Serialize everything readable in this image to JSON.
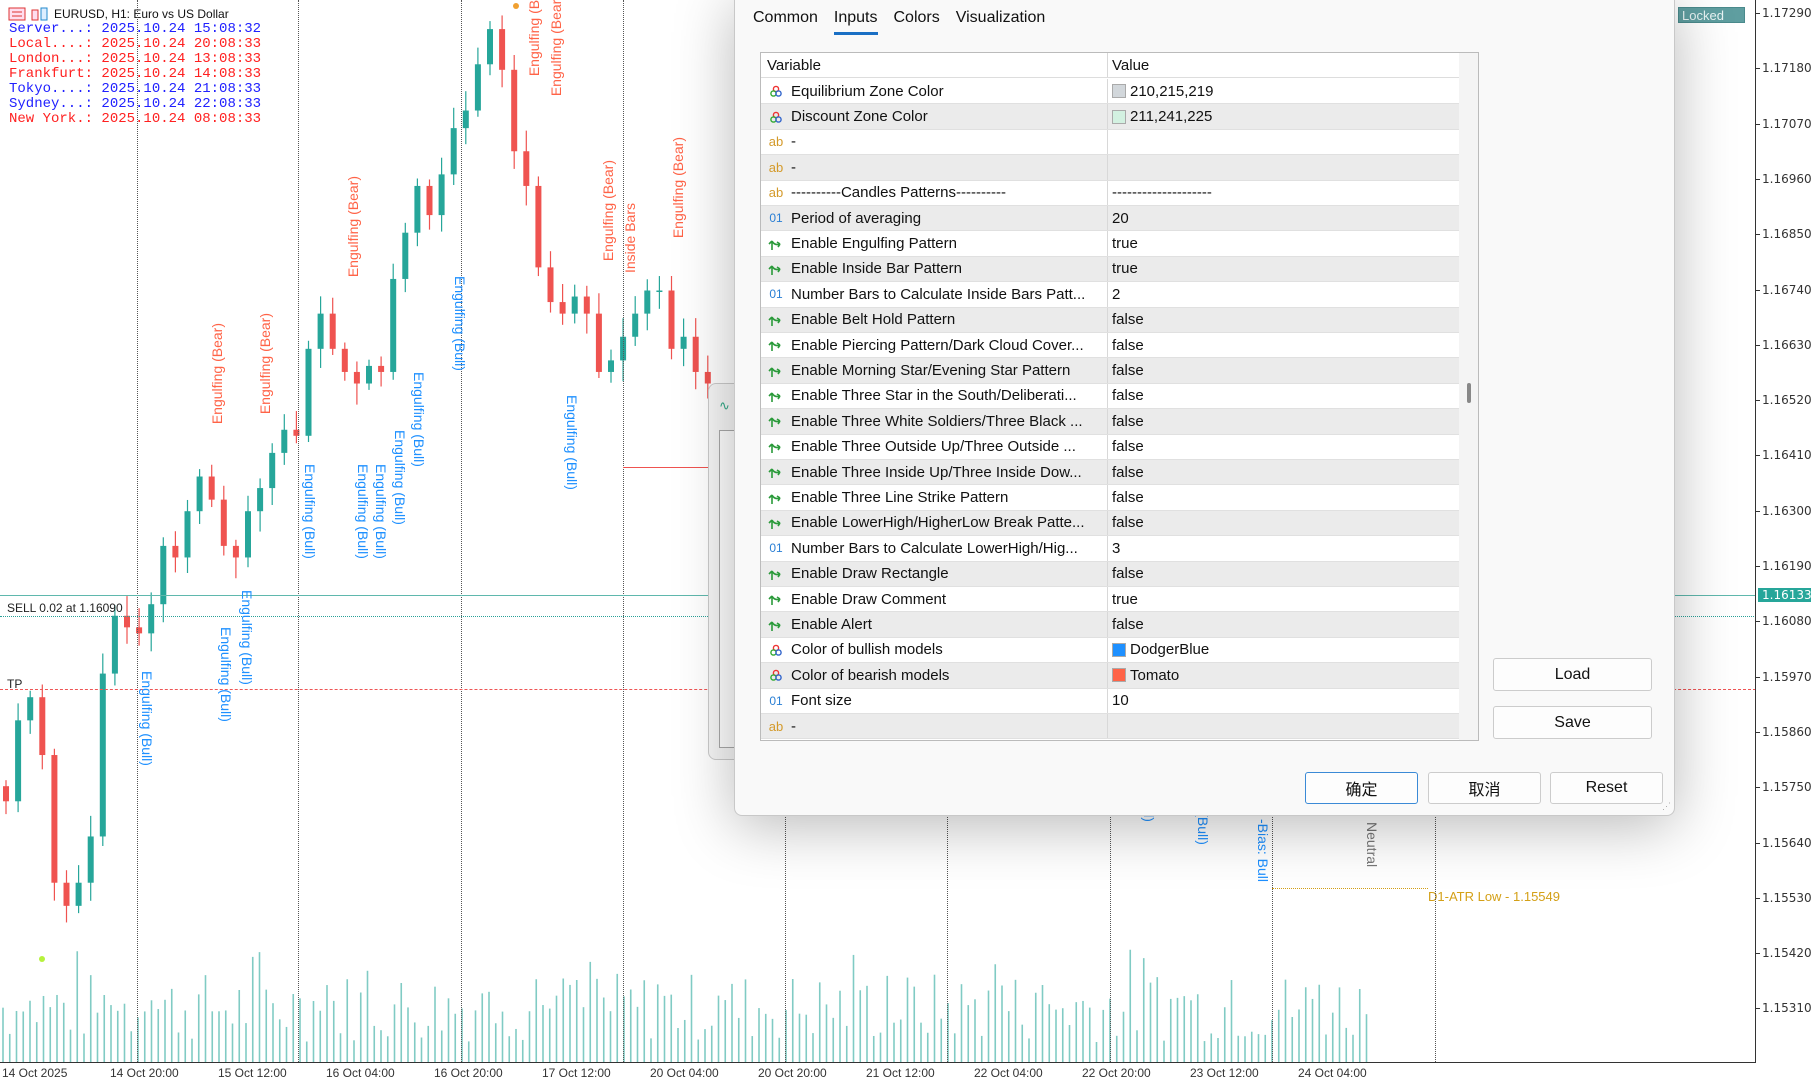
{
  "header": {
    "symbol_title": "EURUSD, H1:  Euro vs US Dollar"
  },
  "clocks": [
    {
      "label": "Server...:",
      "value": "2025.10.24 15:08:32",
      "color": "#2020ff"
    },
    {
      "label": "Local....:",
      "value": "2025.10.24 20:08:33",
      "color": "#ff2020"
    },
    {
      "label": "London...:",
      "value": "2025.10.24 13:08:33",
      "color": "#ff2020"
    },
    {
      "label": "Frankfurt:",
      "value": "2025.10.24 14:08:33",
      "color": "#ff2020"
    },
    {
      "label": "Tokyo....:",
      "value": "2025.10.24 21:08:33",
      "color": "#2020ff"
    },
    {
      "label": "Sydney...:",
      "value": "2025.10.24 22:08:33",
      "color": "#2020ff"
    },
    {
      "label": "New York.:",
      "value": "2025.10.24 08:08:33",
      "color": "#ff2020"
    }
  ],
  "chart_data": {
    "type": "candlestick",
    "symbol": "EURUSD",
    "timeframe": "H1",
    "ylim": [
      1.1525,
      1.1731
    ],
    "y_ticks": [
      "1.17290",
      "1.17180",
      "1.17070",
      "1.16960",
      "1.16850",
      "1.16740",
      "1.16630",
      "1.16520",
      "1.16410",
      "1.16300",
      "1.16190",
      "1.16080",
      "1.15970",
      "1.15860",
      "1.15750",
      "1.15640",
      "1.15530",
      "1.15420",
      "1.15310"
    ],
    "x_ticks": [
      "14 Oct 2025",
      "14 Oct 20:00",
      "15 Oct 12:00",
      "16 Oct 04:00",
      "16 Oct 20:00",
      "17 Oct 12:00",
      "20 Oct 04:00",
      "20 Oct 20:00",
      "21 Oct 12:00",
      "22 Oct 04:00",
      "22 Oct 20:00",
      "23 Oct 12:00",
      "24 Oct 04:00"
    ],
    "closes": [
      1.15722,
      1.15883,
      1.15929,
      1.15814,
      1.1556,
      1.15514,
      1.1556,
      1.15652,
      1.15976,
      1.16091,
      1.16068,
      1.16056,
      1.16114,
      1.1623,
      1.16207,
      1.16299,
      1.16368,
      1.16322,
      1.1623,
      1.16207,
      1.16299,
      1.16345,
      1.16415,
      1.16461,
      1.16449,
      1.16622,
      1.16692,
      1.16622,
      1.16576,
      1.16553,
      1.16588,
      1.16576,
      1.16761,
      1.16853,
      1.16946,
      1.16888,
      1.16969,
      1.17061,
      1.17096,
      1.17188,
      1.17258,
      1.17177,
      1.17015,
      1.16946,
      1.16784,
      1.16715,
      1.16692,
      1.16726,
      1.16692,
      1.16576,
      1.16599,
      1.16646,
      1.16692,
      1.16738,
      1.16738,
      1.16622,
      1.16646,
      1.16576,
      1.16553
    ],
    "current_price": "1.16133",
    "bull_color": "#26a69a",
    "bear_color": "#ef5350",
    "volume_color": "#80cbc4",
    "order_line": {
      "label": "SELL 0.02 at 1.16090",
      "price": 1.1609
    },
    "tp_line": {
      "label": "TP",
      "price": 1.15945
    },
    "atr_line": {
      "label": "D1-ATR Low - 1.15549",
      "price": 1.15549
    },
    "annotations": [
      {
        "text": "Engulfing (Bear)",
        "kind": "bear"
      },
      {
        "text": "Engulfing (Bear)",
        "kind": "bear"
      },
      {
        "text": "Engulfing (Bear)",
        "kind": "bear"
      },
      {
        "text": "Engulfing (Bear)",
        "kind": "bear"
      },
      {
        "text": "Engulfing (Bear)",
        "kind": "bear"
      },
      {
        "text": "Engulfing (Bear)",
        "kind": "bear"
      },
      {
        "text": "Inside Bars",
        "kind": "bear"
      },
      {
        "text": "Engulfing (Bear)",
        "kind": "bear"
      },
      {
        "text": "Engulfing (Bull)",
        "kind": "bull"
      },
      {
        "text": "Engulfing (Bull)",
        "kind": "bull"
      },
      {
        "text": "Engulfing (Bull)",
        "kind": "bull"
      },
      {
        "text": "Engulfing (Bull)",
        "kind": "bull"
      },
      {
        "text": "Engulfing (Bull)",
        "kind": "bull"
      },
      {
        "text": "Engulfing (Bull)",
        "kind": "bull"
      },
      {
        "text": "Engulfing (Bull)",
        "kind": "bull"
      },
      {
        "text": "Engulfing (Bull)",
        "kind": "bull"
      },
      {
        "text": "Engulfing (Bull)",
        "kind": "bull"
      },
      {
        "text": "Engulfing (Bull)",
        "kind": "bull"
      },
      {
        "text": "Engulfing (Bull)",
        "kind": "bull"
      },
      {
        "text": "Engulfing (Bull)",
        "kind": "bull"
      },
      {
        "text": "-Bias: Bull",
        "kind": "bull"
      },
      {
        "text": "Neutral",
        "kind": "neutral"
      }
    ]
  },
  "locked_badge": "Locked",
  "dialog": {
    "tabs": [
      {
        "label": "Common"
      },
      {
        "label": "Inputs",
        "active": true
      },
      {
        "label": "Colors"
      },
      {
        "label": "Visualization"
      }
    ],
    "columns": {
      "variable": "Variable",
      "value": "Value"
    },
    "rows": [
      {
        "type": "color",
        "name": "Equilibrium Zone Color",
        "value": "210,215,219",
        "swatch": "#d2d7db"
      },
      {
        "type": "color",
        "name": "Discount Zone Color",
        "value": "211,241,225",
        "swatch": "#d3f1e1"
      },
      {
        "type": "string",
        "name": "-",
        "value": ""
      },
      {
        "type": "string",
        "name": "-",
        "value": ""
      },
      {
        "type": "string",
        "name": "----------Candles Patterns----------",
        "value": "--------------------"
      },
      {
        "type": "int",
        "name": "Period of averaging",
        "value": "20"
      },
      {
        "type": "bool",
        "name": "Enable Engulfing Pattern",
        "value": "true"
      },
      {
        "type": "bool",
        "name": "Enable Inside Bar Pattern",
        "value": "true"
      },
      {
        "type": "int",
        "name": "Number Bars to Calculate Inside Bars Patt...",
        "value": "2"
      },
      {
        "type": "bool",
        "name": "Enable Belt Hold Pattern",
        "value": "false"
      },
      {
        "type": "bool",
        "name": "Enable Piercing Pattern/Dark Cloud Cover...",
        "value": "false"
      },
      {
        "type": "bool",
        "name": "Enable Morning Star/Evening Star Pattern",
        "value": "false"
      },
      {
        "type": "bool",
        "name": "Enable Three Star in the South/Deliberati...",
        "value": "false"
      },
      {
        "type": "bool",
        "name": "Enable Three White Soldiers/Three Black ...",
        "value": "false"
      },
      {
        "type": "bool",
        "name": "Enable Three Outside Up/Three Outside ...",
        "value": "false"
      },
      {
        "type": "bool",
        "name": "Enable Three Inside Up/Three Inside Dow...",
        "value": "false"
      },
      {
        "type": "bool",
        "name": "Enable Three Line Strike Pattern",
        "value": "false"
      },
      {
        "type": "bool",
        "name": "Enable LowerHigh/HigherLow Break Patte...",
        "value": "false"
      },
      {
        "type": "int",
        "name": "Number Bars to Calculate LowerHigh/Hig...",
        "value": "3"
      },
      {
        "type": "bool",
        "name": "Enable Draw Rectangle",
        "value": "false"
      },
      {
        "type": "bool",
        "name": "Enable Draw Comment",
        "value": "true"
      },
      {
        "type": "bool",
        "name": "Enable Alert",
        "value": "false"
      },
      {
        "type": "color",
        "name": "Color of bullish models",
        "value": "DodgerBlue",
        "swatch": "#1e90ff"
      },
      {
        "type": "color",
        "name": "Color of bearish models",
        "value": "Tomato",
        "swatch": "#ff6347"
      },
      {
        "type": "int",
        "name": "Font size",
        "value": "10"
      },
      {
        "type": "string",
        "name": "-",
        "value": ""
      }
    ],
    "load_label": "Load",
    "save_label": "Save",
    "ok_label": "确定",
    "cancel_label": "取消",
    "reset_label": "Reset"
  }
}
